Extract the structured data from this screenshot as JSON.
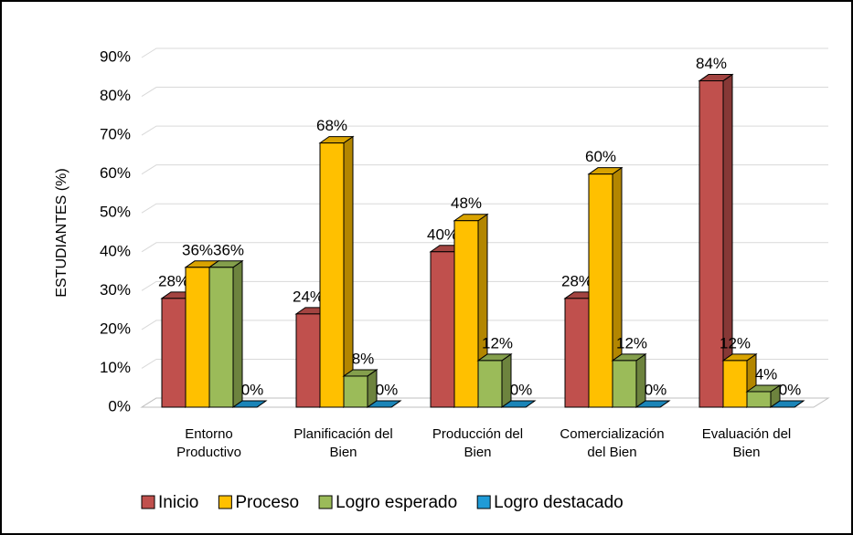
{
  "chart_data": {
    "type": "bar3d",
    "y_label": "ESTUDIANTES (%)",
    "categories": [
      "Entorno Productivo",
      "Planificación del Bien",
      "Producción del Bien",
      "Comercialización del Bien",
      "Evaluación del Bien"
    ],
    "series": [
      {
        "name": "Inicio",
        "color": "#c0504d",
        "values": [
          28,
          24,
          40,
          28,
          84
        ],
        "value_labels": [
          "28%",
          "24%",
          "40%",
          "28%",
          "84%"
        ]
      },
      {
        "name": "Proceso",
        "color": "#ffc000",
        "values": [
          36,
          68,
          48,
          60,
          12
        ],
        "value_labels": [
          "36%",
          "68%",
          "48%",
          "60%",
          "12%"
        ]
      },
      {
        "name": "Logro esperado",
        "color": "#9bbb59",
        "values": [
          36,
          8,
          12,
          12,
          4
        ],
        "value_labels": [
          "36%",
          "8%",
          "12%",
          "12%",
          "4%"
        ]
      },
      {
        "name": "Logro destacado",
        "color": "#1f9bd7",
        "values": [
          0,
          0,
          0,
          0,
          0
        ],
        "value_labels": [
          "0%",
          "0%",
          "0%",
          "0%",
          "0%"
        ]
      }
    ],
    "ylim": [
      0,
      90
    ],
    "yticks": [
      {
        "value": 0,
        "label": "0%"
      },
      {
        "value": 10,
        "label": "10%"
      },
      {
        "value": 20,
        "label": "20%"
      },
      {
        "value": 30,
        "label": "30%"
      },
      {
        "value": 40,
        "label": "40%"
      },
      {
        "value": 50,
        "label": "50%"
      },
      {
        "value": 60,
        "label": "60%"
      },
      {
        "value": 70,
        "label": "70%"
      },
      {
        "value": 80,
        "label": "80%"
      },
      {
        "value": 90,
        "label": "90%"
      }
    ],
    "grid": true,
    "legend": "bottom"
  }
}
